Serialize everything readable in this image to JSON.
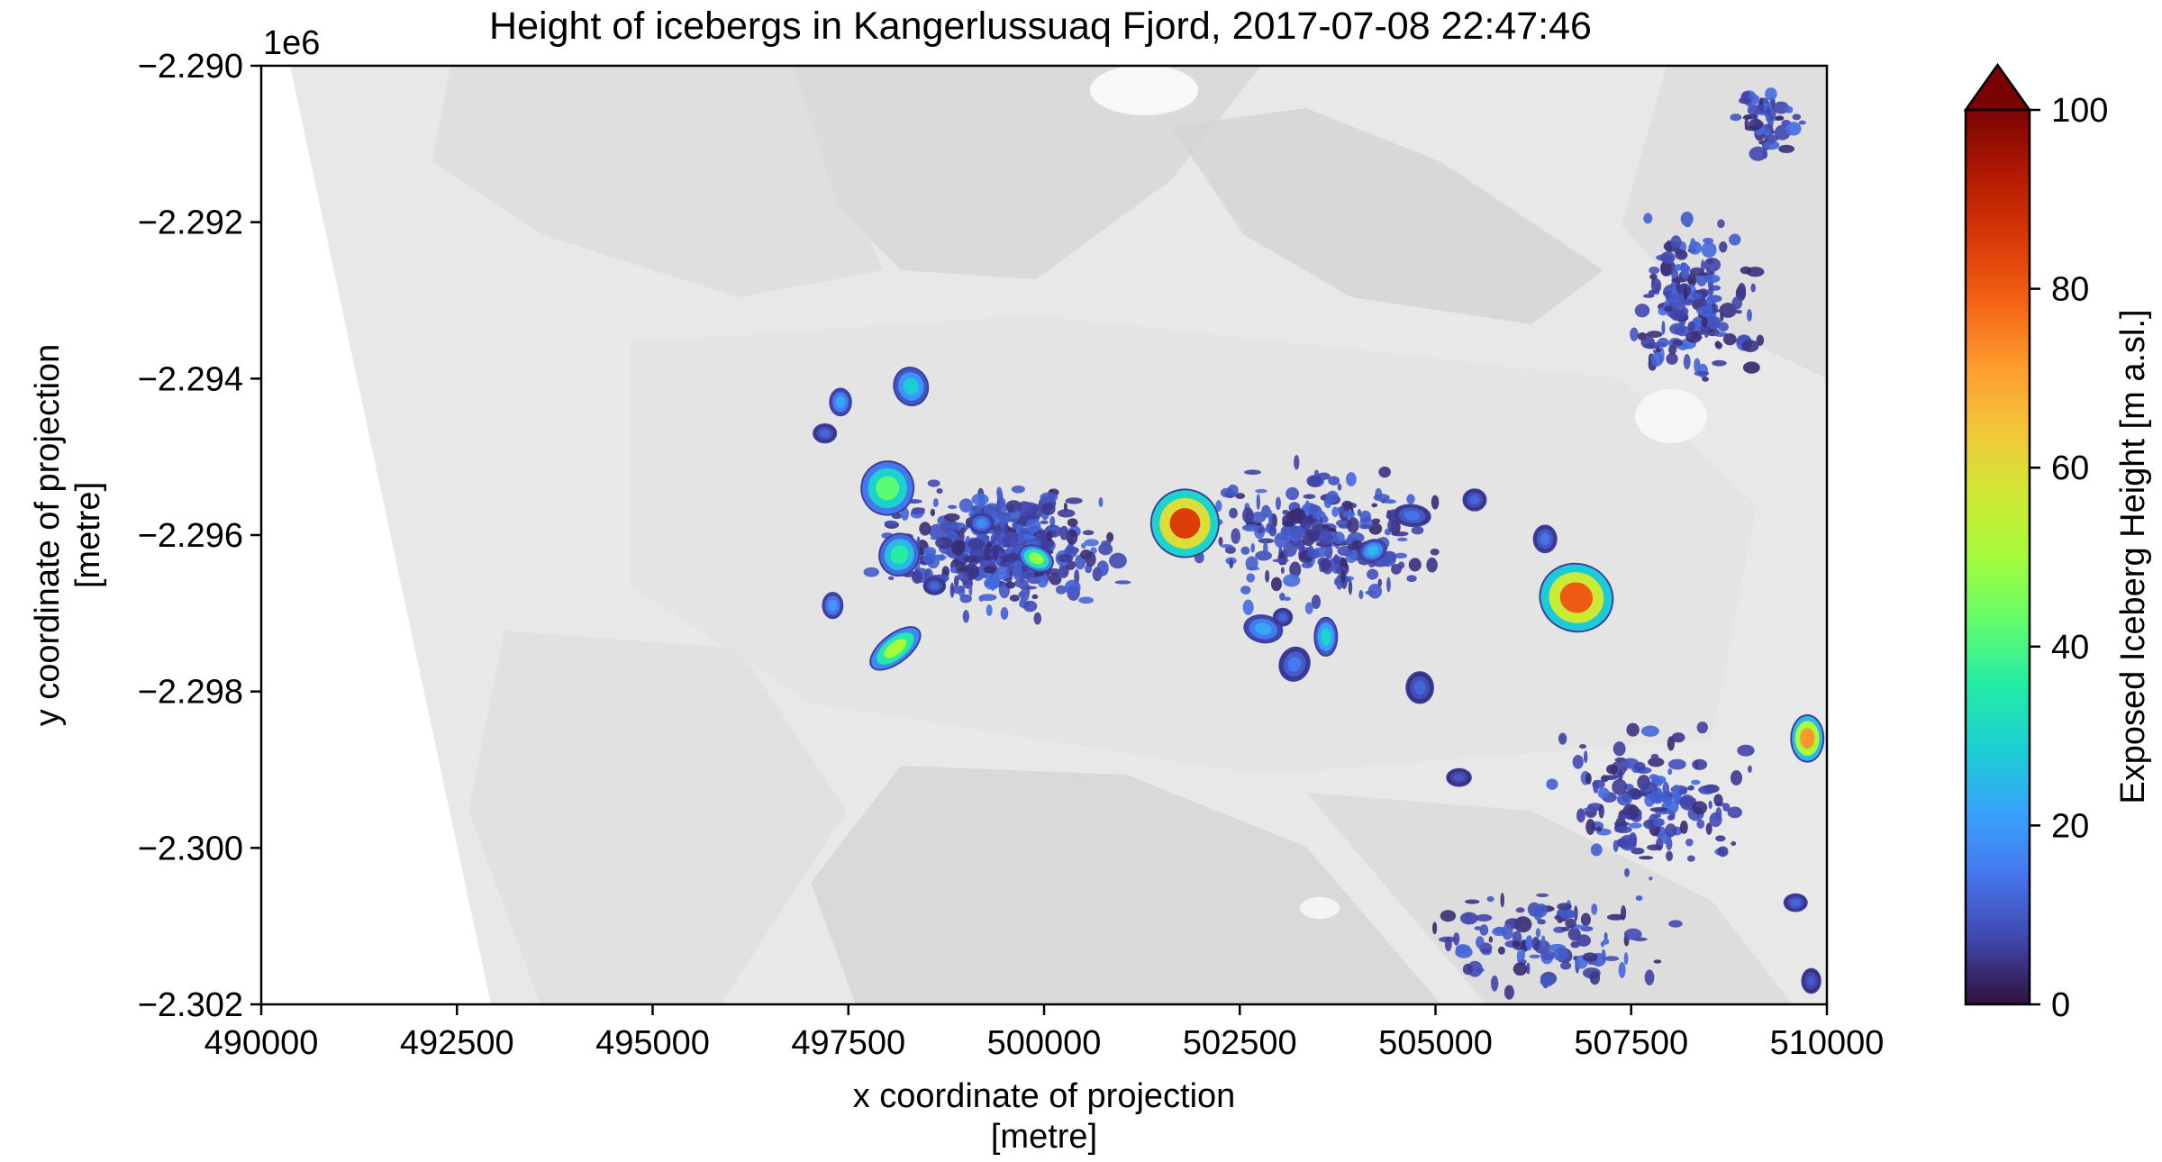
{
  "chart_data": {
    "type": "heatmap",
    "title": "Height of icebergs in Kangerlussuaq Fjord, 2017-07-08 22:47:46",
    "xlabel_line1": "x coordinate of projection",
    "xlabel_line2": "[metre]",
    "ylabel_line1": "y coordinate of projection",
    "ylabel_line2": "[metre]",
    "y_offset_label": "1e6",
    "xlim": [
      490000,
      510000
    ],
    "ylim": [
      -2.302,
      -2.29
    ],
    "x_ticks": [
      490000,
      492500,
      495000,
      497500,
      500000,
      502500,
      505000,
      507500,
      510000
    ],
    "x_tick_labels": [
      "490000",
      "492500",
      "495000",
      "497500",
      "500000",
      "502500",
      "505000",
      "507500",
      "510000"
    ],
    "y_ticks": [
      -2.29,
      -2.292,
      -2.294,
      -2.296,
      -2.298,
      -2.3,
      -2.302
    ],
    "y_tick_labels": [
      "−2.290",
      "−2.292",
      "−2.294",
      "−2.296",
      "−2.298",
      "−2.300",
      "−2.302"
    ],
    "colorbar": {
      "label": "Exposed Iceberg Height [m a.sl.]",
      "range": [
        0,
        100
      ],
      "extend": "max",
      "colormap": "turbo",
      "ticks": [
        0,
        20,
        40,
        60,
        80,
        100
      ],
      "tick_labels": [
        "0",
        "20",
        "40",
        "60",
        "80",
        "100"
      ],
      "colors": [
        "#30123b",
        "#4145ab",
        "#4675ed",
        "#39a2fc",
        "#1bcfd4",
        "#24eca6",
        "#61fc6c",
        "#a4fc3b",
        "#d1e834",
        "#f3c63a",
        "#fe9b2d",
        "#f36315",
        "#d93806",
        "#b11901",
        "#7a0403"
      ]
    },
    "background": "grayscale hillshade imagery",
    "grid": false,
    "icebergs": [
      {
        "x": 501800,
        "y": -2.29585,
        "h": 85,
        "rx": 480,
        "ry": 480,
        "rot": -10
      },
      {
        "x": 506800,
        "y": -2.2968,
        "h": 80,
        "rx": 520,
        "ry": 480,
        "rot": 15
      },
      {
        "x": 509750,
        "y": -2.2986,
        "h": 72,
        "rx": 230,
        "ry": 330,
        "rot": 0
      },
      {
        "x": 498100,
        "y": -2.29745,
        "h": 50,
        "rx": 420,
        "ry": 200,
        "rot": -38
      },
      {
        "x": 498000,
        "y": -2.2954,
        "h": 42,
        "rx": 370,
        "ry": 380,
        "rot": 10
      },
      {
        "x": 498150,
        "y": -2.29625,
        "h": 36,
        "rx": 280,
        "ry": 300,
        "rot": 20
      },
      {
        "x": 498300,
        "y": -2.2941,
        "h": 28,
        "rx": 240,
        "ry": 270,
        "rot": -15
      },
      {
        "x": 499900,
        "y": -2.2963,
        "h": 48,
        "rx": 250,
        "ry": 170,
        "rot": 25
      },
      {
        "x": 502800,
        "y": -2.2972,
        "h": 22,
        "rx": 270,
        "ry": 190,
        "rot": 10
      },
      {
        "x": 503600,
        "y": -2.2973,
        "h": 30,
        "rx": 160,
        "ry": 270,
        "rot": 0
      },
      {
        "x": 503200,
        "y": -2.29765,
        "h": 15,
        "rx": 210,
        "ry": 240,
        "rot": 20
      },
      {
        "x": 504200,
        "y": -2.2962,
        "h": 25,
        "rx": 190,
        "ry": 150,
        "rot": -20
      },
      {
        "x": 504700,
        "y": -2.29575,
        "h": 14,
        "rx": 260,
        "ry": 150,
        "rot": 5
      },
      {
        "x": 497400,
        "y": -2.2943,
        "h": 22,
        "rx": 150,
        "ry": 190,
        "rot": 0
      },
      {
        "x": 497300,
        "y": -2.2969,
        "h": 20,
        "rx": 140,
        "ry": 180,
        "rot": 0
      },
      {
        "x": 504800,
        "y": -2.29795,
        "h": 12,
        "rx": 190,
        "ry": 220,
        "rot": 0
      },
      {
        "x": 506400,
        "y": -2.29605,
        "h": 14,
        "rx": 160,
        "ry": 190,
        "rot": 0
      },
      {
        "x": 499200,
        "y": -2.29585,
        "h": 18,
        "rx": 170,
        "ry": 140,
        "rot": 0
      },
      {
        "x": 497200,
        "y": -2.2947,
        "h": 12,
        "rx": 160,
        "ry": 130,
        "rot": 0
      },
      {
        "x": 505500,
        "y": -2.29555,
        "h": 12,
        "rx": 160,
        "ry": 150,
        "rot": 0
      },
      {
        "x": 505300,
        "y": -2.2991,
        "h": 10,
        "rx": 170,
        "ry": 120,
        "rot": 0
      },
      {
        "x": 509600,
        "y": -2.3007,
        "h": 12,
        "rx": 160,
        "ry": 120,
        "rot": 0
      },
      {
        "x": 509800,
        "y": -2.3017,
        "h": 10,
        "rx": 130,
        "ry": 170,
        "rot": 0
      },
      {
        "x": 503050,
        "y": -2.29705,
        "h": 12,
        "rx": 130,
        "ry": 120,
        "rot": 0
      },
      {
        "x": 498600,
        "y": -2.29665,
        "h": 12,
        "rx": 150,
        "ry": 120,
        "rot": 0
      }
    ]
  }
}
